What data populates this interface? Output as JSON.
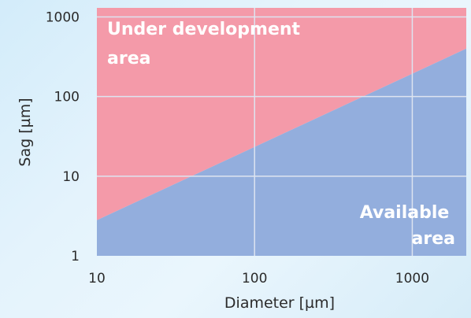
{
  "chart_data": {
    "type": "area",
    "x_scale": "log",
    "y_scale": "log",
    "xlim": [
      10,
      2200
    ],
    "ylim": [
      1,
      1300
    ],
    "xlabel": "Diameter [µm]",
    "ylabel": "Sag [µm]",
    "x_ticks": [
      {
        "value": 10,
        "label": "10"
      },
      {
        "value": 100,
        "label": "100"
      },
      {
        "value": 1000,
        "label": "1000"
      }
    ],
    "y_ticks": [
      {
        "value": 1,
        "label": "1"
      },
      {
        "value": 10,
        "label": "10"
      },
      {
        "value": 100,
        "label": "100"
      },
      {
        "value": 1000,
        "label": "1000"
      }
    ],
    "grid": true,
    "boundary": {
      "x": [
        10,
        2200
      ],
      "y": [
        2.8,
        400
      ]
    },
    "regions": {
      "upper": {
        "label_lines": [
          "Under development",
          "area"
        ],
        "color": "#f49aa9"
      },
      "lower": {
        "label_lines": [
          "Available",
          "area"
        ],
        "color": "#93aedd"
      }
    },
    "grid_color": "#dde4f0"
  }
}
